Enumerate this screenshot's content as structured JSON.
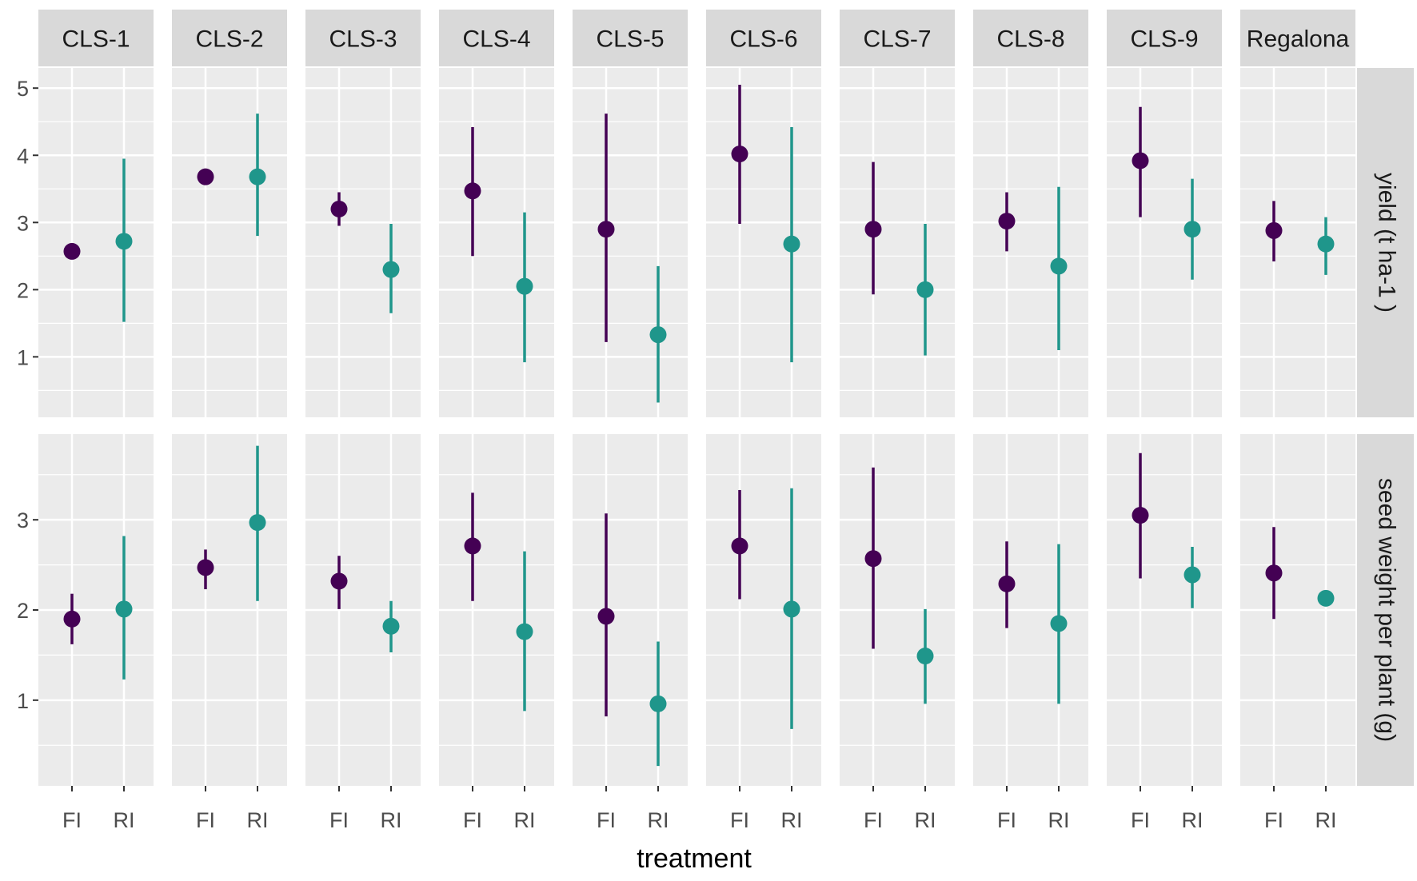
{
  "chart_data": {
    "type": "errorbar",
    "xlabel": "treatment",
    "facets": [
      "CLS-1",
      "CLS-2",
      "CLS-3",
      "CLS-4",
      "CLS-5",
      "CLS-6",
      "CLS-7",
      "CLS-8",
      "CLS-9",
      "Regalona"
    ],
    "treatments": [
      "FI",
      "RI"
    ],
    "colors": {
      "FI": "#440154",
      "RI": "#1f968b",
      "panel_bg": "#ebebeb",
      "strip_bg": "#d9d9d9",
      "grid": "#ffffff"
    },
    "rows": [
      {
        "label": "yield (t ha-1 )",
        "ylim": [
          0.1,
          5.3
        ],
        "yticks": [
          1,
          2,
          3,
          4,
          5
        ],
        "tick_labels": [
          "1",
          "2",
          "3",
          "4",
          "5"
        ],
        "data": {
          "CLS-1": {
            "FI": {
              "mean": 2.57,
              "low": 2.57,
              "high": 2.57
            },
            "RI": {
              "mean": 2.72,
              "low": 1.52,
              "high": 3.95
            }
          },
          "CLS-2": {
            "FI": {
              "mean": 3.68,
              "low": 3.68,
              "high": 3.68
            },
            "RI": {
              "mean": 3.68,
              "low": 2.8,
              "high": 4.62
            }
          },
          "CLS-3": {
            "FI": {
              "mean": 3.2,
              "low": 2.95,
              "high": 3.45
            },
            "RI": {
              "mean": 2.3,
              "low": 1.65,
              "high": 2.98
            }
          },
          "CLS-4": {
            "FI": {
              "mean": 3.47,
              "low": 2.5,
              "high": 4.42
            },
            "RI": {
              "mean": 2.05,
              "low": 0.92,
              "high": 3.15
            }
          },
          "CLS-5": {
            "FI": {
              "mean": 2.9,
              "low": 1.22,
              "high": 4.62
            },
            "RI": {
              "mean": 1.33,
              "low": 0.32,
              "high": 2.35
            }
          },
          "CLS-6": {
            "FI": {
              "mean": 4.02,
              "low": 2.98,
              "high": 5.05
            },
            "RI": {
              "mean": 2.68,
              "low": 0.92,
              "high": 4.42
            }
          },
          "CLS-7": {
            "FI": {
              "mean": 2.9,
              "low": 1.93,
              "high": 3.9
            },
            "RI": {
              "mean": 2.0,
              "low": 1.02,
              "high": 2.98
            }
          },
          "CLS-8": {
            "FI": {
              "mean": 3.02,
              "low": 2.57,
              "high": 3.45
            },
            "RI": {
              "mean": 2.35,
              "low": 1.1,
              "high": 3.53
            }
          },
          "CLS-9": {
            "FI": {
              "mean": 3.92,
              "low": 3.08,
              "high": 4.72
            },
            "RI": {
              "mean": 2.9,
              "low": 2.15,
              "high": 3.65
            }
          },
          "Regalona": {
            "FI": {
              "mean": 2.88,
              "low": 2.42,
              "high": 3.32
            },
            "RI": {
              "mean": 2.68,
              "low": 2.22,
              "high": 3.08
            }
          }
        }
      },
      {
        "label": "seed weight per plant (g)",
        "ylim": [
          0.05,
          3.95
        ],
        "yticks": [
          1,
          2,
          3
        ],
        "tick_labels": [
          "1",
          "2",
          "3"
        ],
        "data": {
          "CLS-1": {
            "FI": {
              "mean": 1.9,
              "low": 1.62,
              "high": 2.18
            },
            "RI": {
              "mean": 2.01,
              "low": 1.23,
              "high": 2.82
            }
          },
          "CLS-2": {
            "FI": {
              "mean": 2.47,
              "low": 2.23,
              "high": 2.67
            },
            "RI": {
              "mean": 2.97,
              "low": 2.1,
              "high": 3.82
            }
          },
          "CLS-3": {
            "FI": {
              "mean": 2.32,
              "low": 2.01,
              "high": 2.6
            },
            "RI": {
              "mean": 1.82,
              "low": 1.53,
              "high": 2.1
            }
          },
          "CLS-4": {
            "FI": {
              "mean": 2.71,
              "low": 2.1,
              "high": 3.3
            },
            "RI": {
              "mean": 1.76,
              "low": 0.88,
              "high": 2.65
            }
          },
          "CLS-5": {
            "FI": {
              "mean": 1.93,
              "low": 0.82,
              "high": 3.07
            },
            "RI": {
              "mean": 0.96,
              "low": 0.27,
              "high": 1.65
            }
          },
          "CLS-6": {
            "FI": {
              "mean": 2.71,
              "low": 2.12,
              "high": 3.33
            },
            "RI": {
              "mean": 2.01,
              "low": 0.68,
              "high": 3.35
            }
          },
          "CLS-7": {
            "FI": {
              "mean": 2.57,
              "low": 1.57,
              "high": 3.58
            },
            "RI": {
              "mean": 1.49,
              "low": 0.96,
              "high": 2.01
            }
          },
          "CLS-8": {
            "FI": {
              "mean": 2.29,
              "low": 1.8,
              "high": 2.76
            },
            "RI": {
              "mean": 1.85,
              "low": 0.96,
              "high": 2.73
            }
          },
          "CLS-9": {
            "FI": {
              "mean": 3.05,
              "low": 2.35,
              "high": 3.74
            },
            "RI": {
              "mean": 2.39,
              "low": 2.02,
              "high": 2.7
            }
          },
          "Regalona": {
            "FI": {
              "mean": 2.41,
              "low": 1.9,
              "high": 2.92
            },
            "RI": {
              "mean": 2.13,
              "low": 2.13,
              "high": 2.13
            }
          }
        }
      }
    ]
  }
}
